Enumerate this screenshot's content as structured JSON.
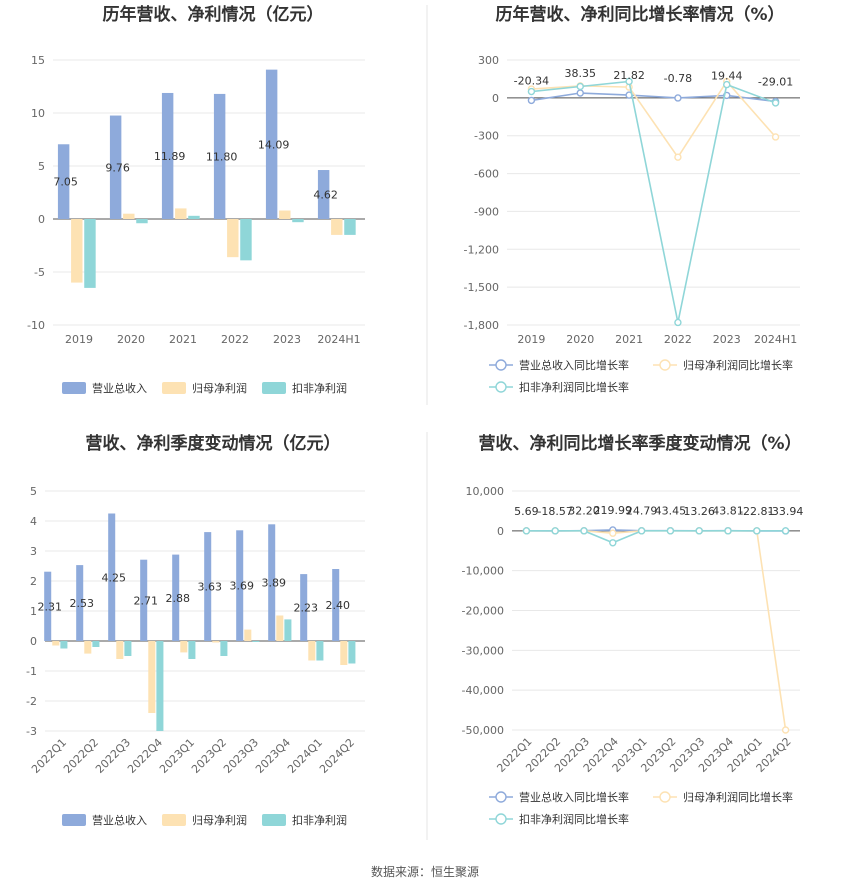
{
  "source_text": "数据来源：恒生聚源",
  "colors": {
    "revenue": "#8eaadb",
    "net_profit": "#fde2b3",
    "deducted_profit": "#8fd6d8",
    "grid": "#e8e8e8",
    "axis": "#555555",
    "title": "#333333",
    "divider": "#e5e5e5"
  },
  "chart_data": [
    {
      "id": "annual-bar",
      "type": "bar",
      "title": "历年营收、净利情况（亿元）",
      "categories": [
        "2019",
        "2020",
        "2021",
        "2022",
        "2023",
        "2024H1"
      ],
      "series": [
        {
          "name": "营业总收入",
          "values": [
            7.05,
            9.76,
            11.89,
            11.8,
            14.09,
            4.62
          ]
        },
        {
          "name": "归母净利润",
          "values": [
            -6.0,
            0.5,
            1.0,
            -3.6,
            0.8,
            -1.5
          ]
        },
        {
          "name": "扣非净利润",
          "values": [
            -6.5,
            -0.4,
            0.3,
            -3.9,
            -0.3,
            -1.5
          ]
        }
      ],
      "data_labels": [
        "7.05",
        "9.76",
        "11.89",
        "11.80",
        "14.09",
        "4.62"
      ],
      "ylim": [
        -10,
        15
      ],
      "yticks": [
        "-10",
        "-5",
        "0",
        "5",
        "10",
        "15"
      ],
      "xlabel": "",
      "ylabel": ""
    },
    {
      "id": "annual-line",
      "type": "line",
      "title": "历年营收、净利同比增长率情况（%）",
      "categories": [
        "2019",
        "2020",
        "2021",
        "2022",
        "2023",
        "2024H1"
      ],
      "series": [
        {
          "name": "营业总收入同比增长率",
          "values": [
            -20.34,
            38.35,
            21.82,
            -0.78,
            19.44,
            -29.01
          ]
        },
        {
          "name": "归母净利润同比增长率",
          "values": [
            70,
            95,
            85,
            -470,
            130,
            -310
          ]
        },
        {
          "name": "扣非净利润同比增长率",
          "values": [
            50,
            90,
            130,
            -1780,
            105,
            -40
          ]
        }
      ],
      "data_labels": [
        "-20.34",
        "38.35",
        "21.82",
        "-0.78",
        "19.44",
        "-29.01"
      ],
      "ylim": [
        -1800,
        300
      ],
      "yticks": [
        "-1,800",
        "-1,500",
        "-1,200",
        "-900",
        "-600",
        "-300",
        "0",
        "300"
      ],
      "xlabel": "",
      "ylabel": ""
    },
    {
      "id": "quarterly-bar",
      "type": "bar",
      "title": "营收、净利季度变动情况（亿元）",
      "categories": [
        "2022Q1",
        "2022Q2",
        "2022Q3",
        "2022Q4",
        "2023Q1",
        "2023Q2",
        "2023Q3",
        "2023Q4",
        "2024Q1",
        "2024Q2"
      ],
      "series": [
        {
          "name": "营业总收入",
          "values": [
            2.31,
            2.53,
            4.25,
            2.71,
            2.88,
            3.63,
            3.69,
            3.89,
            2.23,
            2.4
          ]
        },
        {
          "name": "归母净利润",
          "values": [
            -0.15,
            -0.42,
            -0.6,
            -2.4,
            -0.38,
            -0.05,
            0.38,
            0.85,
            -0.65,
            -0.8
          ]
        },
        {
          "name": "扣非净利润",
          "values": [
            -0.25,
            -0.2,
            -0.5,
            -3.0,
            -0.6,
            -0.5,
            0.0,
            0.72,
            -0.65,
            -0.75
          ]
        }
      ],
      "data_labels": [
        "2.31",
        "2.53",
        "4.25",
        "2.71",
        "2.88",
        "3.63",
        "3.69",
        "3.89",
        "2.23",
        "2.40"
      ],
      "ylim": [
        -3,
        5
      ],
      "yticks": [
        "-3",
        "-2",
        "-1",
        "0",
        "1",
        "2",
        "3",
        "4",
        "5"
      ],
      "xlabel": "",
      "ylabel": ""
    },
    {
      "id": "quarterly-line",
      "type": "line",
      "title": "营收、净利同比增长率季度变动情况（%）",
      "categories": [
        "2022Q1",
        "2022Q2",
        "2022Q3",
        "2022Q4",
        "2023Q1",
        "2023Q2",
        "2023Q3",
        "2023Q4",
        "2024Q1",
        "2024Q2"
      ],
      "series": [
        {
          "name": "营业总收入同比增长率",
          "values": [
            5.69,
            -18.57,
            32.2,
            219.99,
            24.79,
            43.45,
            13.26,
            43.81,
            -22.81,
            -33.94
          ]
        },
        {
          "name": "归母净利润同比增长率",
          "values": [
            0,
            0,
            0,
            -600,
            0,
            0,
            0,
            0,
            0,
            -50000
          ]
        },
        {
          "name": "扣非净利润同比增长率",
          "values": [
            0,
            0,
            0,
            -3000,
            0,
            0,
            0,
            0,
            0,
            0
          ]
        }
      ],
      "data_labels": [
        "5.69",
        "-18.57",
        "32.20",
        "219.99",
        "24.79",
        "43.45",
        "13.26",
        "43.81",
        "-22.81",
        "-33.94"
      ],
      "ylim": [
        -50000,
        10000
      ],
      "yticks": [
        "-50,000",
        "-40,000",
        "-30,000",
        "-20,000",
        "-10,000",
        "0",
        "10,000"
      ],
      "xlabel": "",
      "ylabel": ""
    }
  ]
}
